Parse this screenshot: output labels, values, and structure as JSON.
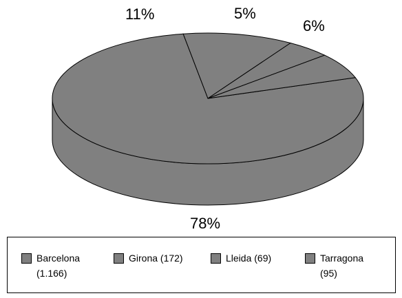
{
  "chart_data": {
    "type": "pie",
    "style": "3d",
    "categories": [
      "Barcelona (1.166)",
      "Girona (172)",
      "Lleida (69)",
      "Tarragona (95)"
    ],
    "values": [
      1166,
      172,
      69,
      95
    ],
    "percent_labels": [
      "78%",
      "11%",
      "5%",
      "6%"
    ],
    "legend_position": "bottom",
    "colors": {
      "slice": "#808080",
      "side": "#808080",
      "edge": "#000000"
    }
  },
  "legend": {
    "items": [
      {
        "label": "Barcelona\n(1.166)"
      },
      {
        "label": "Girona (172)"
      },
      {
        "label": "Lleida (69)"
      },
      {
        "label": "Tarragona\n(95)"
      }
    ]
  }
}
